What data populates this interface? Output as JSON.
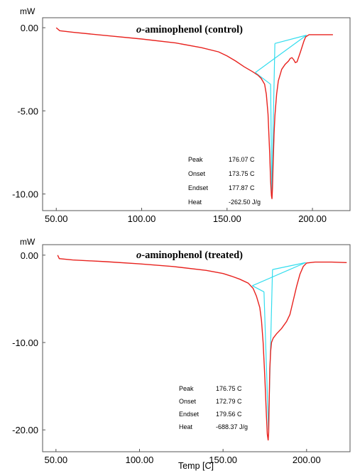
{
  "chart_data": [
    {
      "type": "line",
      "title_italic": "o",
      "title_rest": "-aminophenol (control)",
      "ylabel": "mW",
      "xlabel": "",
      "xlim": [
        42,
        222
      ],
      "ylim": [
        -11.0,
        0.6
      ],
      "x_ticks": [
        50,
        100,
        150,
        200
      ],
      "x_tick_labels": [
        "50.00",
        "100.00",
        "150.00",
        "200.00"
      ],
      "y_ticks": [
        0,
        -5,
        -10
      ],
      "y_tick_labels": [
        "0.00",
        "-5.00",
        "-10.00"
      ],
      "series": [
        {
          "color": "#e8221e",
          "x": [
            50,
            52,
            60,
            80,
            100,
            120,
            135,
            145,
            150,
            155,
            160,
            165,
            168,
            170,
            172,
            173,
            174,
            175,
            175.5,
            176,
            176.3,
            176.6,
            177,
            177.5,
            178,
            179,
            180,
            182,
            184,
            186,
            187,
            188,
            189,
            190,
            191,
            193,
            195,
            196,
            198,
            205,
            212
          ],
          "y": [
            0,
            -0.18,
            -0.28,
            -0.48,
            -0.68,
            -0.92,
            -1.2,
            -1.45,
            -1.7,
            -2.0,
            -2.35,
            -2.65,
            -2.85,
            -3.05,
            -3.4,
            -4.0,
            -5.2,
            -7.6,
            -9.2,
            -10.1,
            -10.3,
            -9.6,
            -8.0,
            -6.4,
            -5.3,
            -4.0,
            -3.2,
            -2.5,
            -2.2,
            -2.0,
            -1.85,
            -1.8,
            -1.92,
            -2.1,
            -2.05,
            -1.45,
            -0.8,
            -0.55,
            -0.42,
            -0.42,
            -0.42
          ]
        }
      ],
      "analysis_color": "#33ddee",
      "analysis_lines": [
        {
          "x": [
            166.5,
            175.5
          ],
          "y": [
            -2.7,
            -3.4
          ]
        },
        {
          "x": [
            175.5,
            176.2
          ],
          "y": [
            -3.4,
            -10.0
          ]
        },
        {
          "x": [
            166.5,
            196.5
          ],
          "y": [
            -2.7,
            -0.45
          ]
        },
        {
          "x": [
            176.2,
            178.0
          ],
          "y": [
            -10.0,
            -0.95
          ]
        },
        {
          "x": [
            178.0,
            196.5
          ],
          "y": [
            -0.95,
            -0.45
          ]
        }
      ],
      "annotation": {
        "rows": [
          {
            "label": "Peak",
            "value": "176.07 C"
          },
          {
            "label": "Onset",
            "value": "173.75 C"
          },
          {
            "label": "Endset",
            "value": "177.87 C"
          },
          {
            "label": "Heat",
            "value": "-262.50 J/g"
          }
        ]
      }
    },
    {
      "type": "line",
      "title_italic": "o",
      "title_rest": "-aminophenol (treated)",
      "ylabel": "mW",
      "xlabel": "Temp  [C]",
      "xlim": [
        42,
        226
      ],
      "ylim": [
        -22.5,
        1.2
      ],
      "x_ticks": [
        50,
        100,
        150,
        200
      ],
      "x_tick_labels": [
        "50.00",
        "100.00",
        "150.00",
        "200.00"
      ],
      "y_ticks": [
        0,
        -10,
        -20
      ],
      "y_tick_labels": [
        "0.00",
        "-10.00",
        "-20.00"
      ],
      "series": [
        {
          "color": "#e8221e",
          "x": [
            51,
            52,
            60,
            80,
            100,
            120,
            140,
            150,
            155,
            160,
            165,
            168,
            170,
            172,
            173,
            174,
            175,
            176,
            176.5,
            177,
            177.3,
            177.6,
            178,
            178.5,
            179,
            180,
            182,
            185,
            188,
            190,
            192,
            194,
            196,
            198,
            200,
            205,
            215,
            224
          ],
          "y": [
            0,
            -0.4,
            -0.55,
            -0.75,
            -1.0,
            -1.3,
            -1.75,
            -2.1,
            -2.4,
            -2.75,
            -3.2,
            -3.8,
            -4.7,
            -6.0,
            -7.5,
            -10.0,
            -14.0,
            -18.5,
            -20.5,
            -21.2,
            -20.3,
            -17.0,
            -13.0,
            -11.0,
            -10.0,
            -9.5,
            -9.0,
            -8.4,
            -7.6,
            -6.8,
            -5.2,
            -3.6,
            -2.2,
            -1.3,
            -0.9,
            -0.8,
            -0.8,
            -0.85
          ]
        }
      ],
      "analysis_color": "#33ddee",
      "analysis_lines": [
        {
          "x": [
            167.5,
            174.5
          ],
          "y": [
            -3.5,
            -4.2
          ]
        },
        {
          "x": [
            174.5,
            177.2
          ],
          "y": [
            -4.2,
            -20.0
          ]
        },
        {
          "x": [
            167.5,
            199.5
          ],
          "y": [
            -3.5,
            -0.85
          ]
        },
        {
          "x": [
            177.2,
            179.6
          ],
          "y": [
            -20.0,
            -1.65
          ]
        },
        {
          "x": [
            179.6,
            199.5
          ],
          "y": [
            -1.65,
            -0.85
          ]
        }
      ],
      "annotation": {
        "rows": [
          {
            "label": "Peak",
            "value": "176.75 C"
          },
          {
            "label": "Onset",
            "value": "172.79 C"
          },
          {
            "label": "Endset",
            "value": "179.56 C"
          },
          {
            "label": "Heat",
            "value": "-688.37 J/g"
          }
        ]
      }
    }
  ]
}
